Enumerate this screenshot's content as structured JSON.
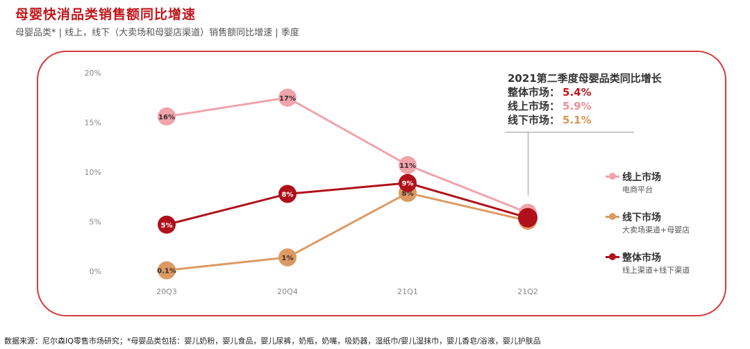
{
  "title": "母婴快消品类销售额同比增速",
  "subtitle": "母婴品类* | 线上，线下（大卖场和母婴店渠道）销售额同比增速 | 季度",
  "callout": {
    "heading": "2021第二季度母婴品类同比增长",
    "rows": [
      {
        "label": "整体市场：",
        "value": "5.4%",
        "color": "#c0171c"
      },
      {
        "label": "线上市场：",
        "value": "5.9%",
        "color": "#eb8f97"
      },
      {
        "label": "线下市场：",
        "value": "5.1%",
        "color": "#d99555"
      }
    ]
  },
  "legend": [
    {
      "name": "线上市场",
      "sub": "电商平台",
      "color": "#f0a3ab"
    },
    {
      "name": "线下市场",
      "sub": "大卖场渠道+母婴店",
      "color": "#dc9a62"
    },
    {
      "name": "整体市场",
      "sub": "线上渠道+线下渠道",
      "color": "#b0101a"
    }
  ],
  "footnote": "数据来源：尼尔森IQ零售市场研究；*母婴品类包括：婴儿奶粉，婴儿食品，婴儿尿裤，奶瓶，奶嘴，吸奶器，湿纸巾/婴儿湿抹巾，婴儿香皂/浴液，婴儿护肤品",
  "watermark": "",
  "chart_data": {
    "type": "line",
    "categories": [
      "20Q3",
      "20Q4",
      "21Q1",
      "21Q2"
    ],
    "y_ticks": [
      "0%",
      "5%",
      "10%",
      "15%",
      "20%"
    ],
    "ylim": [
      0,
      20
    ],
    "grid": false,
    "series": [
      {
        "name": "线上市场",
        "color": "#f0a3ab",
        "values": [
          15.6,
          17.5,
          10.7,
          5.9
        ],
        "labels": [
          "16%",
          "17%",
          "11%",
          ""
        ]
      },
      {
        "name": "线下市场",
        "color": "#dc9a62",
        "values": [
          0.1,
          1.4,
          7.9,
          5.1
        ],
        "labels": [
          "0.1%",
          "1%",
          "8%",
          ""
        ]
      },
      {
        "name": "整体市场",
        "color": "#b0101a",
        "values": [
          4.7,
          7.8,
          8.9,
          5.4
        ],
        "labels": [
          "5%",
          "8%",
          "9%",
          ""
        ]
      }
    ]
  }
}
